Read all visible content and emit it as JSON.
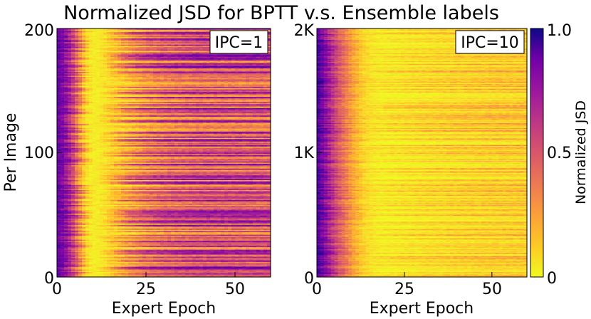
{
  "chart_data": {
    "type": "heatmap",
    "title": "Normalized JSD for BPTT v.s. Ensemble labels",
    "colormap": "plasma_r",
    "colorbar": {
      "label": "Normalized JSD",
      "range": [
        0,
        1
      ],
      "ticks": [
        "0",
        "0.5",
        "1.0"
      ]
    },
    "panels": [
      {
        "annotation": "IPC=1",
        "xlabel": "Expert Epoch",
        "ylabel": "Per Image",
        "xlim": [
          0,
          60
        ],
        "ylim": [
          0,
          200
        ],
        "xticks": [
          "0",
          "25",
          "50"
        ],
        "yticks": [
          "0",
          "100",
          "200"
        ],
        "n_rows": 200,
        "profile": {
          "epochs": [
            0,
            2,
            5,
            8,
            10,
            12,
            15,
            20,
            25,
            30,
            40,
            50,
            60
          ],
          "values": [
            0.85,
            0.78,
            0.55,
            0.2,
            0.05,
            0.08,
            0.2,
            0.35,
            0.45,
            0.5,
            0.55,
            0.55,
            0.55
          ]
        }
      },
      {
        "annotation": "IPC=10",
        "xlabel": "Expert Epoch",
        "ylabel": "",
        "xlim": [
          0,
          60
        ],
        "ylim": [
          0,
          2000
        ],
        "xticks": [
          "0",
          "25",
          "50"
        ],
        "yticks": [
          "0",
          "1K",
          "2K"
        ],
        "n_rows": 260,
        "profile": {
          "epochs": [
            0,
            1,
            3,
            5,
            8,
            11,
            14,
            18,
            22,
            30,
            40,
            50,
            60
          ],
          "values": [
            0.92,
            0.85,
            0.72,
            0.58,
            0.42,
            0.28,
            0.15,
            0.08,
            0.1,
            0.14,
            0.17,
            0.19,
            0.2
          ]
        }
      }
    ]
  }
}
